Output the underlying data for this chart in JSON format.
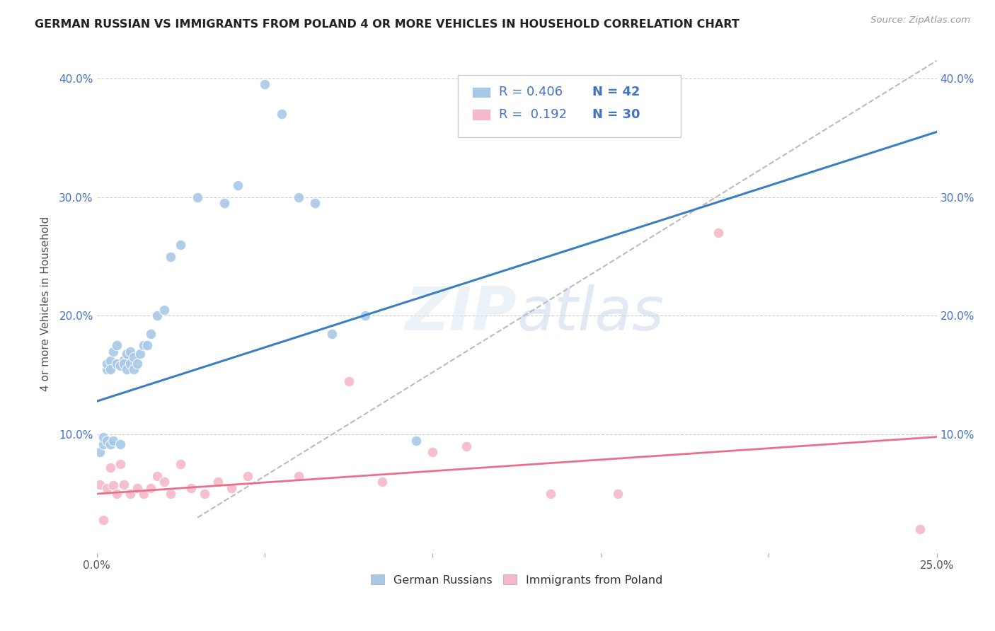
{
  "title": "GERMAN RUSSIAN VS IMMIGRANTS FROM POLAND 4 OR MORE VEHICLES IN HOUSEHOLD CORRELATION CHART",
  "source": "Source: ZipAtlas.com",
  "ylabel": "4 or more Vehicles in Household",
  "xlim": [
    0.0,
    0.25
  ],
  "ylim": [
    0.0,
    0.42
  ],
  "xticks": [
    0.0,
    0.05,
    0.1,
    0.15,
    0.2,
    0.25
  ],
  "yticks": [
    0.0,
    0.1,
    0.2,
    0.3,
    0.4
  ],
  "xtick_labels_bottom": [
    "0.0%",
    "",
    "",
    "",
    "",
    "25.0%"
  ],
  "ytick_labels_left": [
    "",
    "10.0%",
    "20.0%",
    "30.0%",
    "40.0%"
  ],
  "ytick_labels_right": [
    "",
    "10.0%",
    "20.0%",
    "30.0%",
    "40.0%"
  ],
  "color_blue": "#a8c8e8",
  "color_pink": "#f4b8c8",
  "color_blue_line": "#3a7fc1",
  "color_pink_line": "#e8708a",
  "color_ref_line": "#bbbbbb",
  "watermark_zip": "ZIP",
  "watermark_atlas": "atlas",
  "blue_scatter_x": [
    0.001,
    0.002,
    0.002,
    0.003,
    0.003,
    0.003,
    0.004,
    0.004,
    0.004,
    0.005,
    0.005,
    0.006,
    0.006,
    0.007,
    0.007,
    0.008,
    0.008,
    0.009,
    0.009,
    0.01,
    0.01,
    0.011,
    0.011,
    0.012,
    0.013,
    0.014,
    0.015,
    0.016,
    0.018,
    0.02,
    0.022,
    0.025,
    0.03,
    0.038,
    0.042,
    0.05,
    0.055,
    0.06,
    0.065,
    0.07,
    0.08,
    0.095
  ],
  "blue_scatter_y": [
    0.085,
    0.092,
    0.098,
    0.155,
    0.16,
    0.095,
    0.162,
    0.155,
    0.092,
    0.17,
    0.095,
    0.175,
    0.16,
    0.158,
    0.092,
    0.163,
    0.16,
    0.168,
    0.155,
    0.17,
    0.16,
    0.165,
    0.155,
    0.16,
    0.168,
    0.175,
    0.175,
    0.185,
    0.2,
    0.205,
    0.25,
    0.26,
    0.3,
    0.295,
    0.31,
    0.395,
    0.37,
    0.3,
    0.295,
    0.185,
    0.2,
    0.095
  ],
  "pink_scatter_x": [
    0.001,
    0.002,
    0.003,
    0.004,
    0.005,
    0.006,
    0.007,
    0.008,
    0.01,
    0.012,
    0.014,
    0.016,
    0.018,
    0.02,
    0.022,
    0.025,
    0.028,
    0.032,
    0.036,
    0.04,
    0.045,
    0.06,
    0.075,
    0.085,
    0.1,
    0.11,
    0.135,
    0.155,
    0.185,
    0.245
  ],
  "pink_scatter_y": [
    0.058,
    0.028,
    0.055,
    0.072,
    0.057,
    0.05,
    0.075,
    0.058,
    0.05,
    0.055,
    0.05,
    0.055,
    0.065,
    0.06,
    0.05,
    0.075,
    0.055,
    0.05,
    0.06,
    0.055,
    0.065,
    0.065,
    0.145,
    0.06,
    0.085,
    0.09,
    0.05,
    0.05,
    0.27,
    0.02
  ],
  "blue_line_x": [
    0.0,
    0.25
  ],
  "blue_line_y": [
    0.128,
    0.355
  ],
  "pink_line_x": [
    0.0,
    0.25
  ],
  "pink_line_y": [
    0.05,
    0.098
  ],
  "ref_line_x": [
    0.03,
    0.25
  ],
  "ref_line_y": [
    0.03,
    0.415
  ]
}
